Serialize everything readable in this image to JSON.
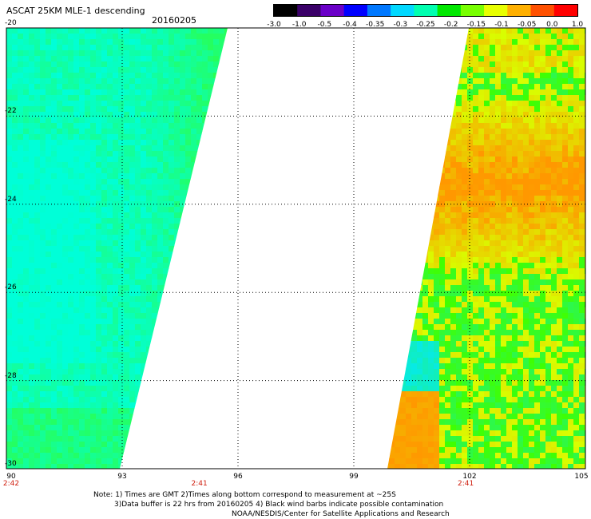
{
  "header": {
    "title": "ASCAT 25KM MLE-1 descending",
    "date": "20160205"
  },
  "colorbar": {
    "labels": [
      "-3.0",
      "-1.0",
      "-0.5",
      "-0.4",
      "-0.35",
      "-0.3",
      "-0.25",
      "-0.2",
      "-0.15",
      "-0.1",
      "-0.05",
      "0.0",
      "1.0"
    ],
    "colors": [
      "#000000",
      "#3a0068",
      "#6a00c8",
      "#0000ff",
      "#0078ff",
      "#00d8ff",
      "#00ffb0",
      "#00e800",
      "#78ff00",
      "#e8ff00",
      "#ffb000",
      "#ff5000",
      "#ff0000"
    ]
  },
  "axes": {
    "lat_labels": [
      "-20",
      "-22",
      "-24",
      "-26",
      "-28",
      "-30"
    ],
    "lon_labels": [
      "90",
      "93",
      "96",
      "99",
      "102",
      "105"
    ],
    "time_labels": [
      {
        "lon": 90,
        "text": "2:42"
      },
      {
        "lon": 95,
        "text": "2:41"
      },
      {
        "lon": 101.9,
        "text": "2:41"
      }
    ]
  },
  "swaths": [
    {
      "name": "west-swath",
      "lon_min": 90,
      "lon_max_at_lat_top": 95.7,
      "lon_max_at_lat_bottom": 92.9
    },
    {
      "name": "east-swath",
      "lon_min_at_lat_top": 101.9,
      "lon_min_at_lat_bottom": 99.9,
      "lon_max": 105
    }
  ],
  "notes": {
    "line1": "Note: 1) Times are GMT 2)Times along bottom correspond to measurement at ~25S",
    "line2": "3)Data buffer is 22 hrs from 20160205 4) Black wind barbs indicate possible contamination",
    "line3": "NOAA/NESDIS/Center for Satellite Applications and Research"
  }
}
